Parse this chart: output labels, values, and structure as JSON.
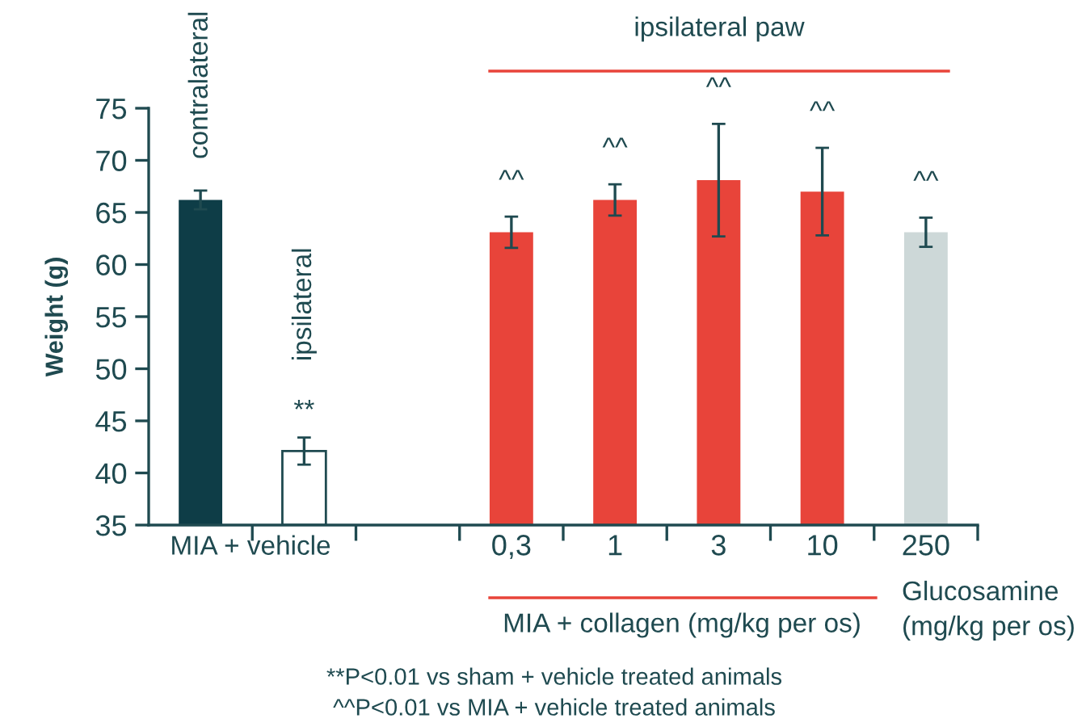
{
  "chart_data": {
    "type": "bar",
    "ylabel": "Weight (g)",
    "categories": [
      null,
      null,
      null,
      "0,3",
      "1",
      "3",
      "10",
      "250"
    ],
    "values": [
      66.2,
      42.1,
      null,
      63.1,
      66.2,
      68.1,
      67.0,
      63.1
    ],
    "errors": [
      0.9,
      1.3,
      null,
      1.5,
      1.5,
      5.4,
      4.2,
      1.4
    ],
    "colors": [
      "#0e3d47",
      "#ffffff",
      "#ffffff",
      "#e8443a",
      "#e8443a",
      "#e8443a",
      "#e8443a",
      "#cdd8d8"
    ],
    "ylim": [
      35,
      75
    ],
    "yticks": [
      35,
      40,
      45,
      50,
      55,
      60,
      65,
      70,
      75
    ],
    "grid": false,
    "legend": false,
    "annotations": [
      "contralateral",
      "ipsilateral",
      "**",
      "^^",
      "^^",
      "^^",
      "^^",
      "^^",
      "ipsilateral paw",
      "MIA + vehicle",
      "MIA + collagen (mg/kg per os)",
      "Glucosamine\n(mg/kg per os)",
      "**P<0.01 vs sham + vehicle treated animals",
      "^^P<0.01 vs MIA + vehicle treated animals"
    ]
  }
}
